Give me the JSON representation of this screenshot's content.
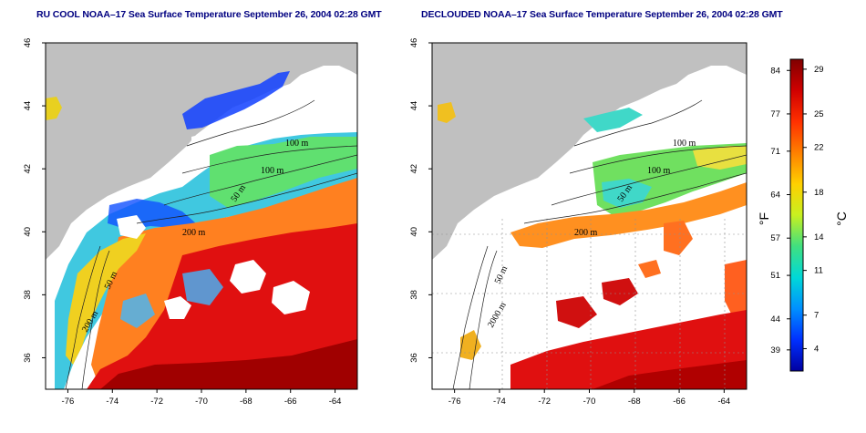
{
  "maps": [
    {
      "id": "left",
      "title": "RU COOL NOAA–17 Sea Surface Temperature September 26, 2004 02:28 GMT",
      "contours": [
        "100 m",
        "100 m",
        "50 m",
        "200 m",
        "50 m",
        "200 m"
      ]
    },
    {
      "id": "right",
      "title": "DECLOUDED NOAA–17 Sea Surface Temperature September 26, 2004 02:28 GMT",
      "contours": [
        "100 m",
        "100 m",
        "50 m",
        "200 m",
        "50 m",
        "2000 m"
      ]
    }
  ],
  "axes": {
    "lon_ticks": [
      "-76",
      "-74",
      "-72",
      "-70",
      "-68",
      "-66",
      "-64"
    ],
    "lat_ticks": [
      "46",
      "44",
      "42",
      "40",
      "38",
      "36"
    ]
  },
  "colorbar": {
    "fahrenheit_ticks": [
      "84",
      "77",
      "71",
      "64",
      "57",
      "51",
      "44",
      "39"
    ],
    "celsius_ticks": [
      "29",
      "25",
      "22",
      "18",
      "14",
      "11",
      "7",
      "4"
    ],
    "fahrenheit_label": "°F",
    "celsius_label": "°C",
    "colors": [
      "#800000",
      "#d00000",
      "#ff3000",
      "#ff8000",
      "#ffd000",
      "#c8f020",
      "#40e080",
      "#00d8d8",
      "#0090ff",
      "#0030ff",
      "#0000a0"
    ]
  },
  "colors": {
    "land": "#c0c0c0",
    "cloud": "#ffffff",
    "title": "#000080"
  }
}
